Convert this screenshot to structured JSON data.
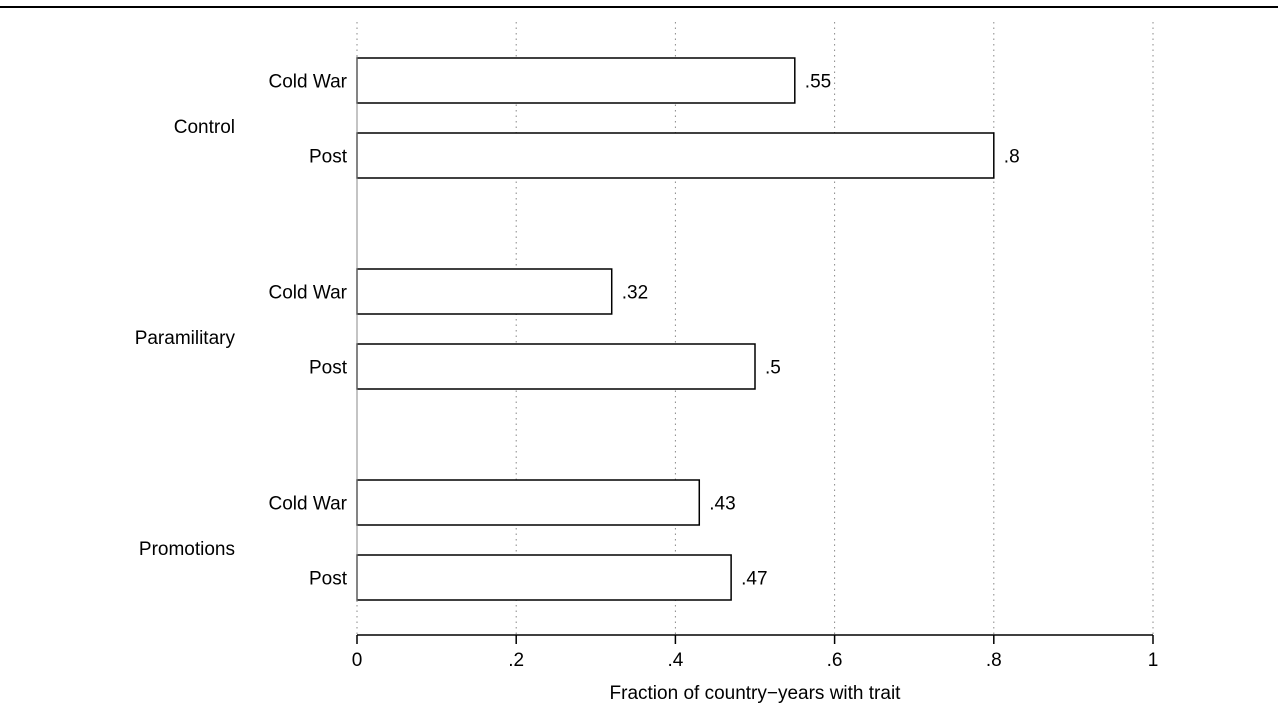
{
  "chart_data": {
    "type": "bar",
    "orientation": "horizontal",
    "groups": [
      {
        "name": "Control",
        "bars": [
          {
            "label": "Cold War",
            "value": 0.55,
            "value_label": ".55"
          },
          {
            "label": "Post",
            "value": 0.8,
            "value_label": ".8"
          }
        ]
      },
      {
        "name": "Paramilitary",
        "bars": [
          {
            "label": "Cold War",
            "value": 0.32,
            "value_label": ".32"
          },
          {
            "label": "Post",
            "value": 0.5,
            "value_label": ".5"
          }
        ]
      },
      {
        "name": "Promotions",
        "bars": [
          {
            "label": "Cold War",
            "value": 0.43,
            "value_label": ".43"
          },
          {
            "label": "Post",
            "value": 0.47,
            "value_label": ".47"
          }
        ]
      }
    ],
    "xlabel": "Fraction of country−years with trait",
    "xlim": [
      0,
      1
    ],
    "xticks": [
      0,
      0.2,
      0.4,
      0.6,
      0.8,
      1
    ],
    "xtick_labels": [
      "0",
      ".2",
      ".4",
      ".6",
      ".8",
      "1"
    ],
    "grid": "vertical dotted",
    "legend": "none",
    "colors": {
      "bar_fill": "#ffffff",
      "bar_stroke": "#000000",
      "grid": "#888888"
    }
  }
}
